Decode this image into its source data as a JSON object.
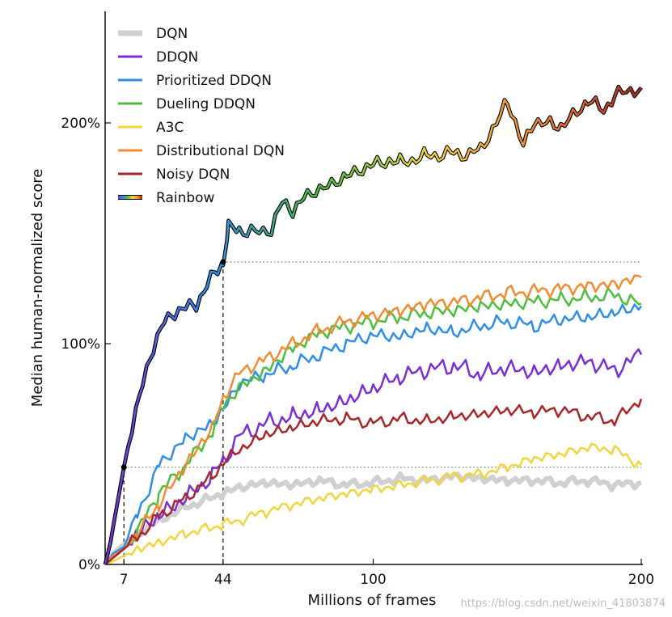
{
  "chart_data": {
    "type": "line",
    "xlabel": "Millions of frames",
    "ylabel": "Median human-normalized score",
    "xlim": [
      0,
      200
    ],
    "ylim": [
      0,
      250
    ],
    "x_ticks": [
      {
        "value": 7,
        "label": "7"
      },
      {
        "value": 44,
        "label": "44"
      },
      {
        "value": 100,
        "label": "100"
      },
      {
        "value": 200,
        "label": "200"
      }
    ],
    "y_ticks": [
      {
        "value": 0,
        "label": "0%"
      },
      {
        "value": 100,
        "label": "100%"
      },
      {
        "value": 200,
        "label": "200%"
      }
    ],
    "legend_position": "top-left",
    "grid": false,
    "reference_lines": [
      {
        "kind": "horizontal-dotted",
        "y": 44,
        "from_x": 7,
        "to_x": 200
      },
      {
        "kind": "horizontal-dotted",
        "y": 137,
        "from_x": 44,
        "to_x": 200
      },
      {
        "kind": "vertical-dashed",
        "x": 7,
        "from_y": 0,
        "to_y": 44
      },
      {
        "kind": "vertical-dashed",
        "x": 44,
        "from_y": 0,
        "to_y": 137
      }
    ],
    "markers": [
      {
        "x": 7,
        "y": 44
      },
      {
        "x": 44,
        "y": 137
      }
    ],
    "series": [
      {
        "name": "DQN",
        "color": "#d0d0d0",
        "width": 6,
        "x": [
          0,
          3,
          7,
          12,
          20,
          30,
          44,
          50,
          60,
          70,
          80,
          90,
          100,
          110,
          120,
          130,
          140,
          150,
          160,
          170,
          180,
          190,
          200
        ],
        "y": [
          0,
          5,
          9,
          14,
          20,
          26,
          32,
          35,
          37,
          36,
          38,
          36,
          37,
          39,
          38,
          40,
          39,
          38,
          38,
          37,
          38,
          36,
          37
        ]
      },
      {
        "name": "DDQN",
        "color": "#7b2fd6",
        "width": 2.5,
        "x": [
          0,
          4,
          7,
          12,
          20,
          30,
          40,
          44,
          50,
          60,
          70,
          80,
          90,
          100,
          110,
          120,
          130,
          140,
          150,
          160,
          170,
          180,
          190,
          200
        ],
        "y": [
          0,
          4,
          7,
          14,
          22,
          30,
          40,
          47,
          58,
          64,
          67,
          70,
          74,
          80,
          85,
          88,
          90,
          86,
          89,
          87,
          90,
          92,
          88,
          95
        ]
      },
      {
        "name": "Prioritized DDQN",
        "color": "#2f8fe8",
        "width": 2.5,
        "x": [
          0,
          3,
          7,
          12,
          20,
          30,
          40,
          44,
          50,
          60,
          70,
          80,
          90,
          100,
          110,
          120,
          130,
          140,
          150,
          160,
          170,
          180,
          190,
          200
        ],
        "y": [
          0,
          5,
          8,
          22,
          45,
          57,
          64,
          70,
          82,
          86,
          90,
          95,
          100,
          104,
          103,
          107,
          105,
          108,
          110,
          108,
          111,
          112,
          114,
          117
        ]
      },
      {
        "name": "Dueling DDQN",
        "color": "#4cc03c",
        "width": 2.5,
        "x": [
          0,
          3,
          7,
          12,
          20,
          30,
          40,
          44,
          50,
          60,
          70,
          80,
          90,
          100,
          110,
          120,
          130,
          140,
          150,
          160,
          170,
          180,
          190,
          200
        ],
        "y": [
          0,
          4,
          7,
          15,
          32,
          45,
          60,
          72,
          80,
          88,
          98,
          105,
          108,
          110,
          112,
          114,
          115,
          117,
          118,
          119,
          120,
          121,
          122,
          118
        ]
      },
      {
        "name": "A3C",
        "color": "#f2d53c",
        "width": 2.5,
        "x": [
          0,
          4,
          7,
          12,
          20,
          30,
          44,
          50,
          60,
          70,
          80,
          90,
          100,
          110,
          120,
          130,
          140,
          150,
          160,
          170,
          180,
          190,
          200
        ],
        "y": [
          0,
          2,
          4,
          7,
          10,
          14,
          18,
          20,
          24,
          27,
          30,
          32,
          34,
          36,
          38,
          40,
          41,
          44,
          48,
          50,
          53,
          52,
          45
        ]
      },
      {
        "name": "Distributional DQN",
        "color": "#f28c32",
        "width": 2.5,
        "x": [
          0,
          3,
          7,
          12,
          20,
          30,
          40,
          44,
          50,
          60,
          70,
          80,
          90,
          100,
          110,
          120,
          130,
          140,
          150,
          160,
          170,
          180,
          190,
          200
        ],
        "y": [
          0,
          4,
          7,
          14,
          27,
          45,
          62,
          75,
          87,
          93,
          100,
          106,
          110,
          113,
          115,
          118,
          119,
          121,
          123,
          124,
          125,
          126,
          127,
          130
        ]
      },
      {
        "name": "Noisy DQN",
        "color": "#a8272a",
        "width": 2.5,
        "x": [
          0,
          4,
          7,
          12,
          20,
          30,
          40,
          44,
          50,
          60,
          70,
          80,
          90,
          100,
          110,
          120,
          130,
          140,
          150,
          160,
          170,
          180,
          190,
          200
        ],
        "y": [
          0,
          4,
          7,
          12,
          22,
          30,
          40,
          46,
          52,
          59,
          62,
          65,
          66,
          64,
          66,
          65,
          67,
          68,
          70,
          69,
          70,
          67,
          65,
          75
        ]
      },
      {
        "name": "Rainbow",
        "color": "rainbow",
        "width": 2.5,
        "x": [
          0,
          2,
          4,
          7,
          10,
          14,
          18,
          22,
          26,
          30,
          34,
          38,
          42,
          44,
          46,
          50,
          56,
          62,
          66,
          70,
          74,
          80,
          86,
          90,
          96,
          100,
          106,
          110,
          116,
          120,
          126,
          130,
          136,
          140,
          146,
          150,
          156,
          160,
          166,
          170,
          176,
          180,
          186,
          190,
          196,
          200
        ],
        "y": [
          0,
          10,
          24,
          44,
          62,
          82,
          98,
          110,
          114,
          116,
          118,
          126,
          134,
          137,
          152,
          152,
          150,
          152,
          164,
          160,
          166,
          170,
          173,
          176,
          179,
          181,
          183,
          182,
          184,
          185,
          186,
          186,
          186,
          188,
          200,
          210,
          190,
          200,
          200,
          198,
          205,
          210,
          206,
          212,
          215,
          216
        ]
      }
    ]
  },
  "watermark": "https://blog.csdn.net/weixin_41803874"
}
